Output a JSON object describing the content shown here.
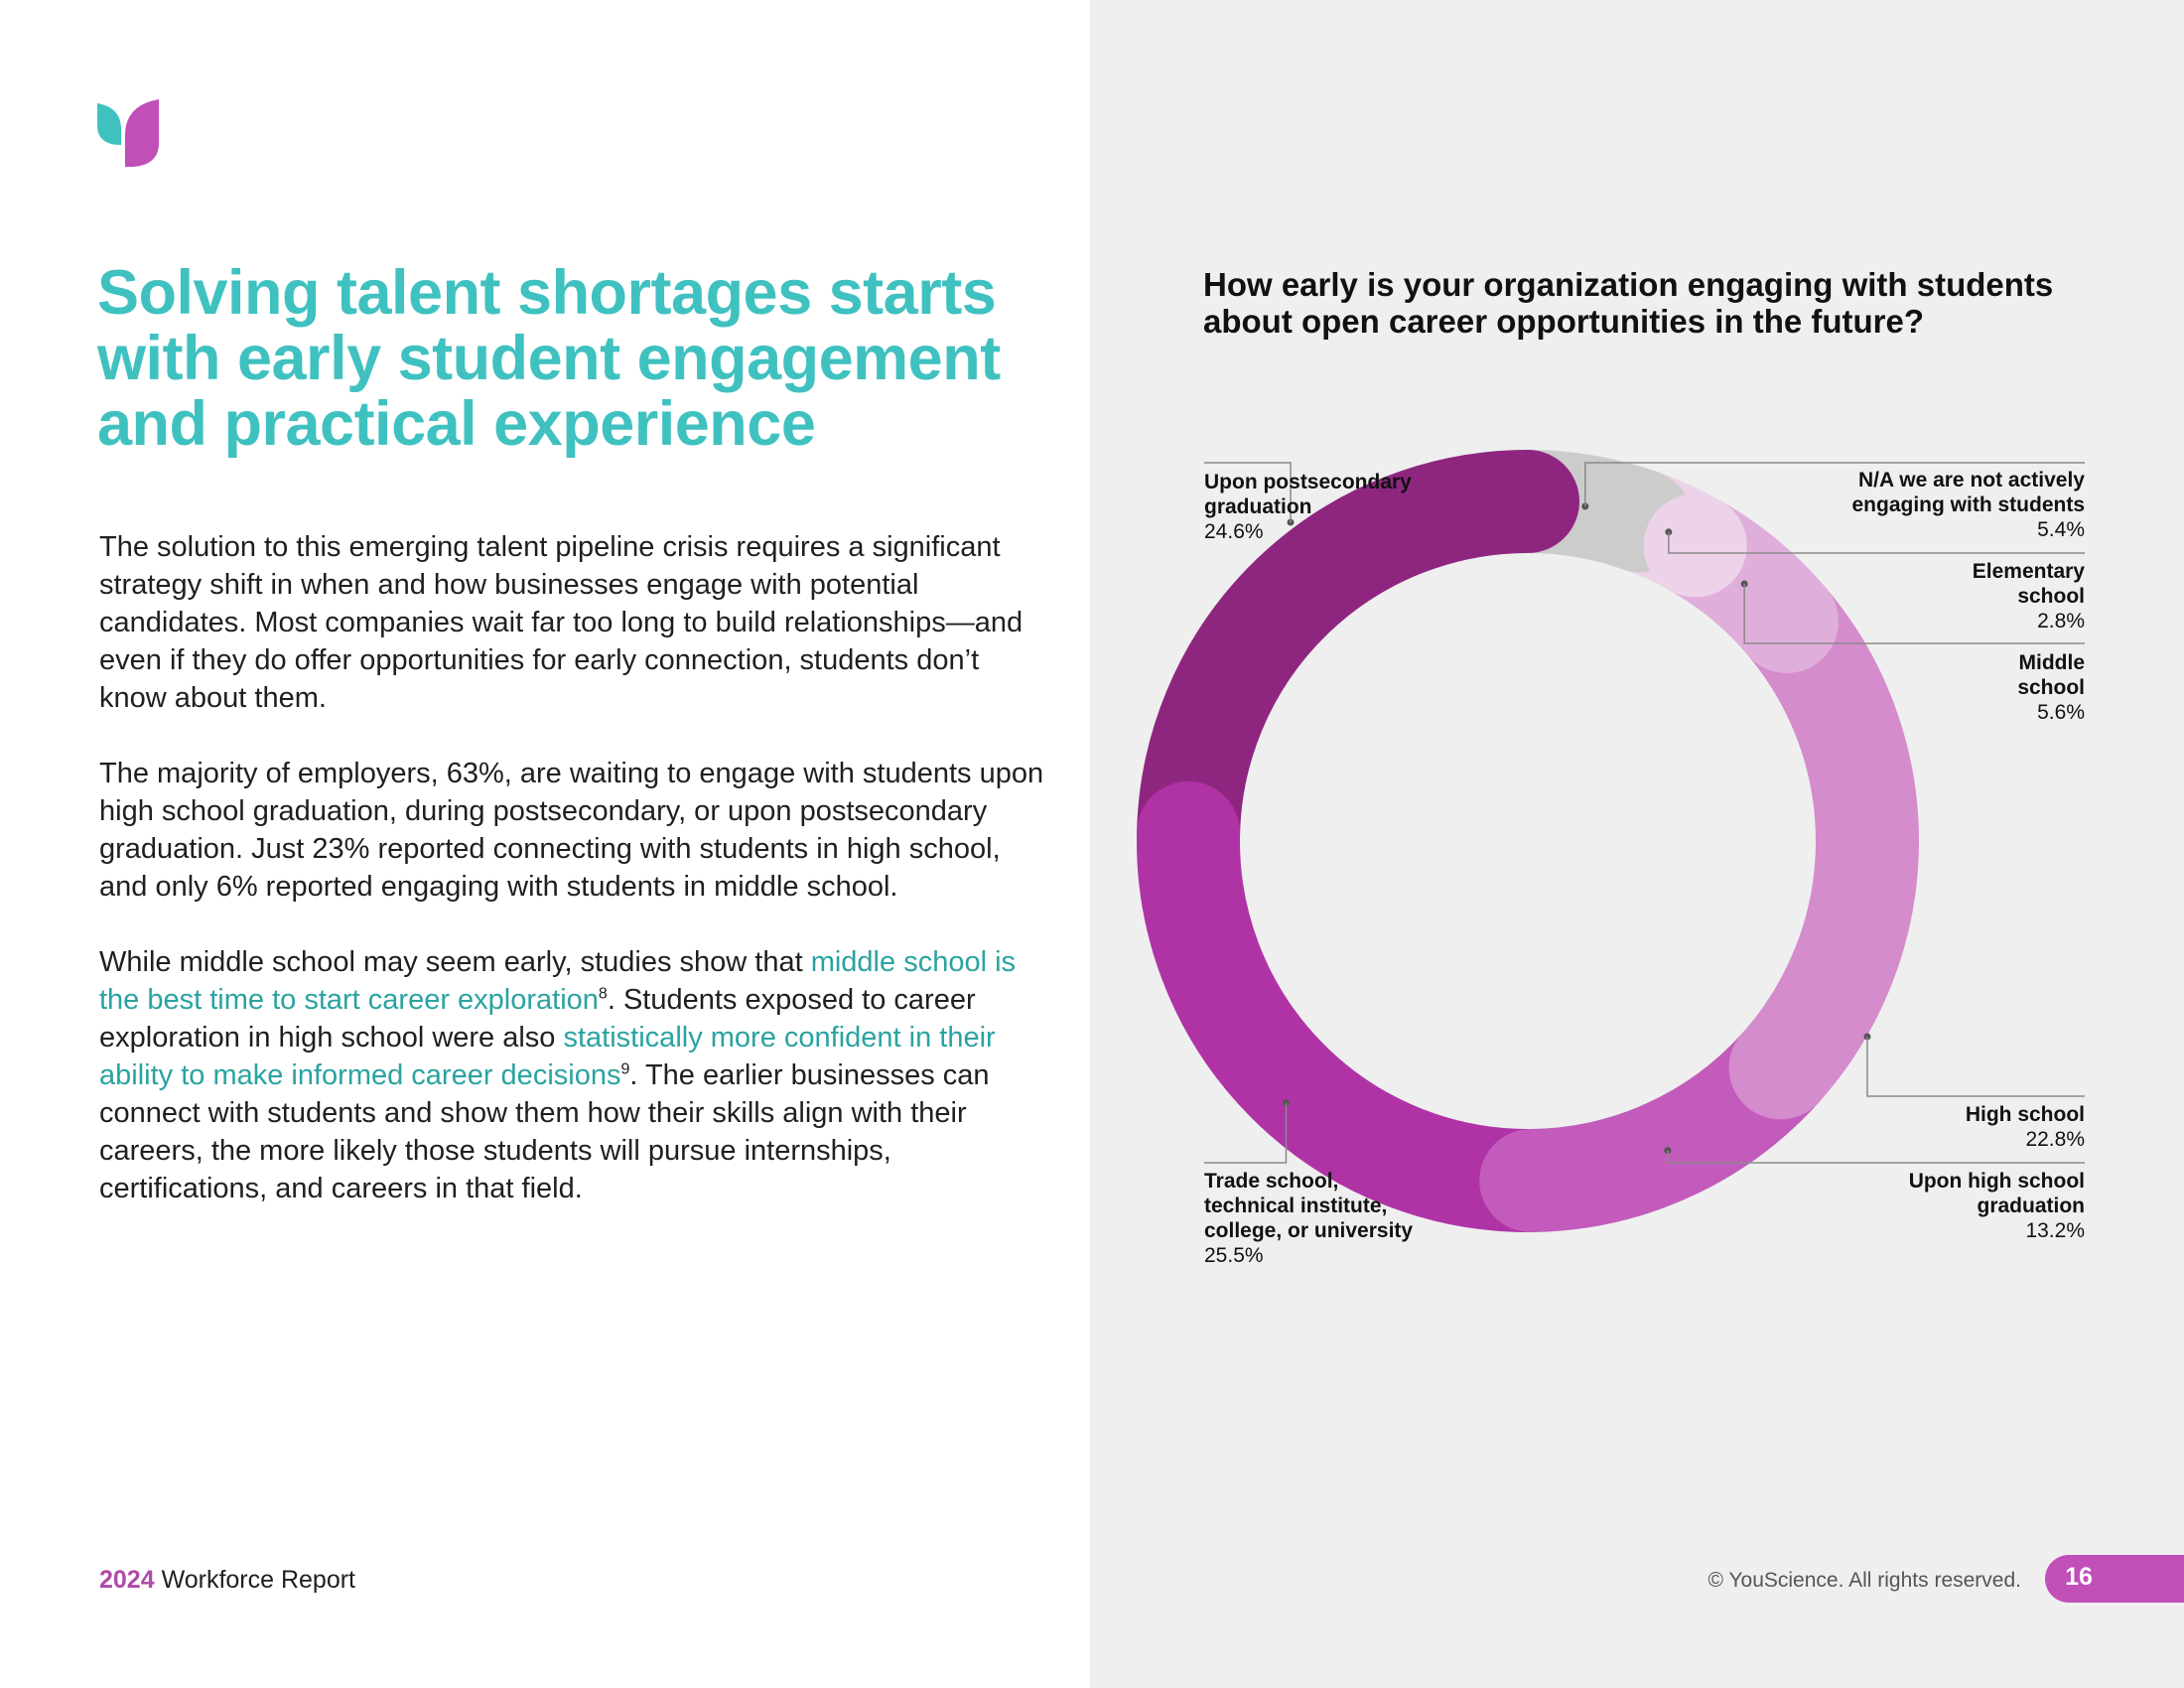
{
  "title": "Solving talent shortages starts with early student engagement and practical experience",
  "paragraphs": {
    "p1": "The solution to this emerging talent pipeline crisis requires a significant strategy shift in when and how businesses engage with potential candidates. Most companies wait far too long to build relationships—and even if they do offer opportunities for early connection, students don’t know about them.",
    "p2": "The majority of employers, 63%, are waiting to engage with students upon high school graduation, during postsecondary, or upon postsecondary graduation. Just 23% reported connecting with students in high school, and only 6% reported engaging with students in middle school.",
    "p3_a": "While middle school may seem early, studies show that ",
    "p3_link1": "middle school is the best time to start career exploration",
    "p3_sup1": "8",
    "p3_b": ". Students exposed to career exploration in high school were also ",
    "p3_link2": "statistically more confident in their ability to make informed career decisions",
    "p3_sup2": "9",
    "p3_c": ". The earlier businesses can connect with students and show them how their skills align with their careers, the more likely those students will pursue internships, certifications, and careers in that field."
  },
  "footer": {
    "year": "2024",
    "report": " Workforce Report",
    "copyright": "© YouScience. All rights reserved.",
    "page": "16"
  },
  "colors": {
    "accent_teal": "#3fc1c0",
    "link_teal": "#2aa3a1",
    "brand_magenta": "#c04fb8"
  },
  "chart_data": {
    "type": "pie",
    "donut": true,
    "title": "How early is your organization engaging with students about open career opportunities in the future?",
    "unit": "%",
    "slices": [
      {
        "label": "N/A we are not actively engaging with students",
        "value": 5.4,
        "display": "5.4%",
        "color": "#cccccc"
      },
      {
        "label": "Elementary school",
        "value": 2.8,
        "display": "2.8%",
        "color": "#ecd3ea"
      },
      {
        "label": "Middle school",
        "value": 5.6,
        "display": "5.6%",
        "color": "#e0aeda"
      },
      {
        "label": "High school",
        "value": 22.8,
        "display": "22.8%",
        "color": "#d48ccc"
      },
      {
        "label": "Upon high school graduation",
        "value": 13.2,
        "display": "13.2%",
        "color": "#c25bbb"
      },
      {
        "label": "Trade school, technical institute, college, or university",
        "value": 25.5,
        "display": "25.5%",
        "color": "#b033a6"
      },
      {
        "label": "Upon postsecondary graduation",
        "value": 24.6,
        "display": "24.6%",
        "color": "#8e2680"
      }
    ]
  }
}
